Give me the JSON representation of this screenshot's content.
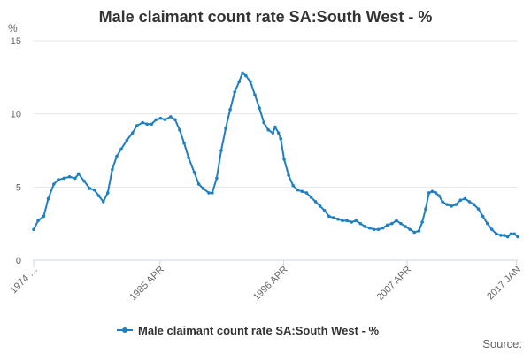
{
  "chart_data": {
    "type": "line",
    "title": "Male claimant count rate SA:South West - %",
    "ylabel": "%",
    "xlabel": "",
    "ylim": [
      0,
      15
    ],
    "yticks": [
      0,
      5,
      10,
      15
    ],
    "xlim": [
      1974.0,
      2017.1
    ],
    "xticks": [
      {
        "x": 1974.0,
        "label": "1974 …"
      },
      {
        "x": 1985.25,
        "label": "1985 APR"
      },
      {
        "x": 1996.25,
        "label": "1996 APR"
      },
      {
        "x": 2007.25,
        "label": "2007 APR"
      },
      {
        "x": 2017.0,
        "label": "2017 JAN"
      }
    ],
    "grid": true,
    "legend_position": "bottom",
    "source_label": "Source:",
    "series": [
      {
        "name": "Male claimant count rate SA:South West - %",
        "color": "#1f7fc0",
        "points": [
          [
            1974.0,
            2.1
          ],
          [
            1974.4,
            2.7
          ],
          [
            1974.9,
            3.0
          ],
          [
            1975.3,
            4.2
          ],
          [
            1975.8,
            5.2
          ],
          [
            1976.2,
            5.5
          ],
          [
            1976.7,
            5.6
          ],
          [
            1977.2,
            5.7
          ],
          [
            1977.7,
            5.6
          ],
          [
            1978.0,
            5.9
          ],
          [
            1978.5,
            5.4
          ],
          [
            1979.0,
            4.9
          ],
          [
            1979.4,
            4.8
          ],
          [
            1979.8,
            4.4
          ],
          [
            1980.2,
            4.0
          ],
          [
            1980.6,
            4.6
          ],
          [
            1981.0,
            6.2
          ],
          [
            1981.4,
            7.1
          ],
          [
            1981.8,
            7.6
          ],
          [
            1982.3,
            8.2
          ],
          [
            1982.8,
            8.7
          ],
          [
            1983.2,
            9.2
          ],
          [
            1983.7,
            9.4
          ],
          [
            1984.1,
            9.3
          ],
          [
            1984.5,
            9.3
          ],
          [
            1984.9,
            9.6
          ],
          [
            1985.3,
            9.7
          ],
          [
            1985.7,
            9.6
          ],
          [
            1986.2,
            9.8
          ],
          [
            1986.6,
            9.6
          ],
          [
            1987.0,
            8.9
          ],
          [
            1987.4,
            8.0
          ],
          [
            1987.8,
            7.0
          ],
          [
            1988.3,
            6.0
          ],
          [
            1988.7,
            5.2
          ],
          [
            1989.1,
            4.9
          ],
          [
            1989.6,
            4.6
          ],
          [
            1989.9,
            4.6
          ],
          [
            1990.3,
            5.6
          ],
          [
            1990.7,
            7.5
          ],
          [
            1991.1,
            9.0
          ],
          [
            1991.5,
            10.3
          ],
          [
            1991.9,
            11.5
          ],
          [
            1992.3,
            12.2
          ],
          [
            1992.6,
            12.8
          ],
          [
            1992.9,
            12.6
          ],
          [
            1993.3,
            12.2
          ],
          [
            1993.7,
            11.3
          ],
          [
            1994.1,
            10.4
          ],
          [
            1994.5,
            9.4
          ],
          [
            1994.9,
            8.9
          ],
          [
            1995.3,
            8.7
          ],
          [
            1995.5,
            9.1
          ],
          [
            1995.8,
            8.7
          ],
          [
            1996.0,
            8.3
          ],
          [
            1996.3,
            6.9
          ],
          [
            1996.7,
            5.8
          ],
          [
            1997.1,
            5.1
          ],
          [
            1997.5,
            4.8
          ],
          [
            1997.9,
            4.7
          ],
          [
            1998.3,
            4.6
          ],
          [
            1998.7,
            4.3
          ],
          [
            1999.1,
            4.0
          ],
          [
            1999.5,
            3.7
          ],
          [
            1999.9,
            3.4
          ],
          [
            2000.3,
            3.0
          ],
          [
            2000.7,
            2.9
          ],
          [
            2001.1,
            2.8
          ],
          [
            2001.5,
            2.7
          ],
          [
            2001.9,
            2.7
          ],
          [
            2002.3,
            2.6
          ],
          [
            2002.7,
            2.7
          ],
          [
            2003.1,
            2.5
          ],
          [
            2003.5,
            2.3
          ],
          [
            2003.9,
            2.2
          ],
          [
            2004.3,
            2.1
          ],
          [
            2004.7,
            2.1
          ],
          [
            2005.1,
            2.2
          ],
          [
            2005.5,
            2.4
          ],
          [
            2005.9,
            2.5
          ],
          [
            2006.3,
            2.7
          ],
          [
            2006.7,
            2.5
          ],
          [
            2007.1,
            2.3
          ],
          [
            2007.5,
            2.1
          ],
          [
            2007.9,
            1.9
          ],
          [
            2008.3,
            2.0
          ],
          [
            2008.6,
            2.6
          ],
          [
            2008.9,
            3.5
          ],
          [
            2009.2,
            4.6
          ],
          [
            2009.5,
            4.7
          ],
          [
            2009.8,
            4.6
          ],
          [
            2010.1,
            4.4
          ],
          [
            2010.4,
            4.0
          ],
          [
            2010.8,
            3.8
          ],
          [
            2011.2,
            3.7
          ],
          [
            2011.6,
            3.8
          ],
          [
            2012.0,
            4.1
          ],
          [
            2012.4,
            4.2
          ],
          [
            2012.8,
            4.0
          ],
          [
            2013.2,
            3.8
          ],
          [
            2013.6,
            3.5
          ],
          [
            2014.0,
            3.0
          ],
          [
            2014.4,
            2.5
          ],
          [
            2014.8,
            2.1
          ],
          [
            2015.2,
            1.8
          ],
          [
            2015.6,
            1.7
          ],
          [
            2015.9,
            1.7
          ],
          [
            2016.2,
            1.6
          ],
          [
            2016.5,
            1.8
          ],
          [
            2016.8,
            1.8
          ],
          [
            2017.1,
            1.6
          ]
        ]
      }
    ]
  }
}
